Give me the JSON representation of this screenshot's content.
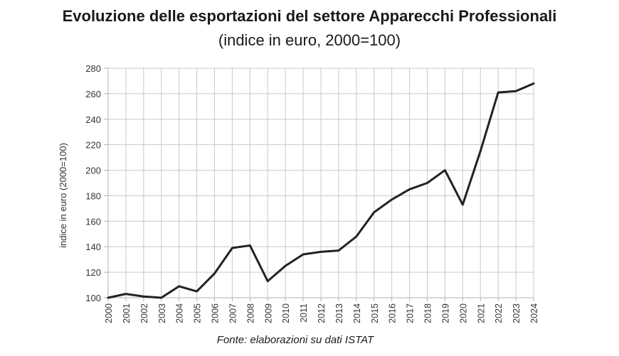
{
  "chart_data": {
    "type": "line",
    "title": "Evoluzione delle esportazioni del settore Apparecchi Professionali",
    "subtitle": "(indice in euro, 2000=100)",
    "xlabel": "",
    "ylabel": "indice in euro (2000=100)",
    "source": "Fonte: elaborazioni su dati ISTAT",
    "ylim": [
      100,
      280
    ],
    "yticks": [
      100,
      120,
      140,
      160,
      180,
      200,
      220,
      240,
      260,
      280
    ],
    "grid": true,
    "categories": [
      "2000",
      "2001",
      "2002",
      "2003",
      "2004",
      "2005",
      "2006",
      "2007",
      "2008",
      "2009",
      "2010",
      "2011",
      "2012",
      "2013",
      "2014",
      "2015",
      "2016",
      "2017",
      "2018",
      "2019",
      "2020",
      "2021",
      "2022",
      "2023",
      "2024"
    ],
    "series": [
      {
        "name": "Apparecchi Professionali",
        "color": "#222222",
        "values": [
          100,
          103,
          101,
          100,
          109,
          105,
          119,
          139,
          141,
          113,
          125,
          134,
          136,
          137,
          148,
          167,
          177,
          185,
          190,
          200,
          173,
          215,
          261,
          262,
          268
        ]
      }
    ]
  }
}
